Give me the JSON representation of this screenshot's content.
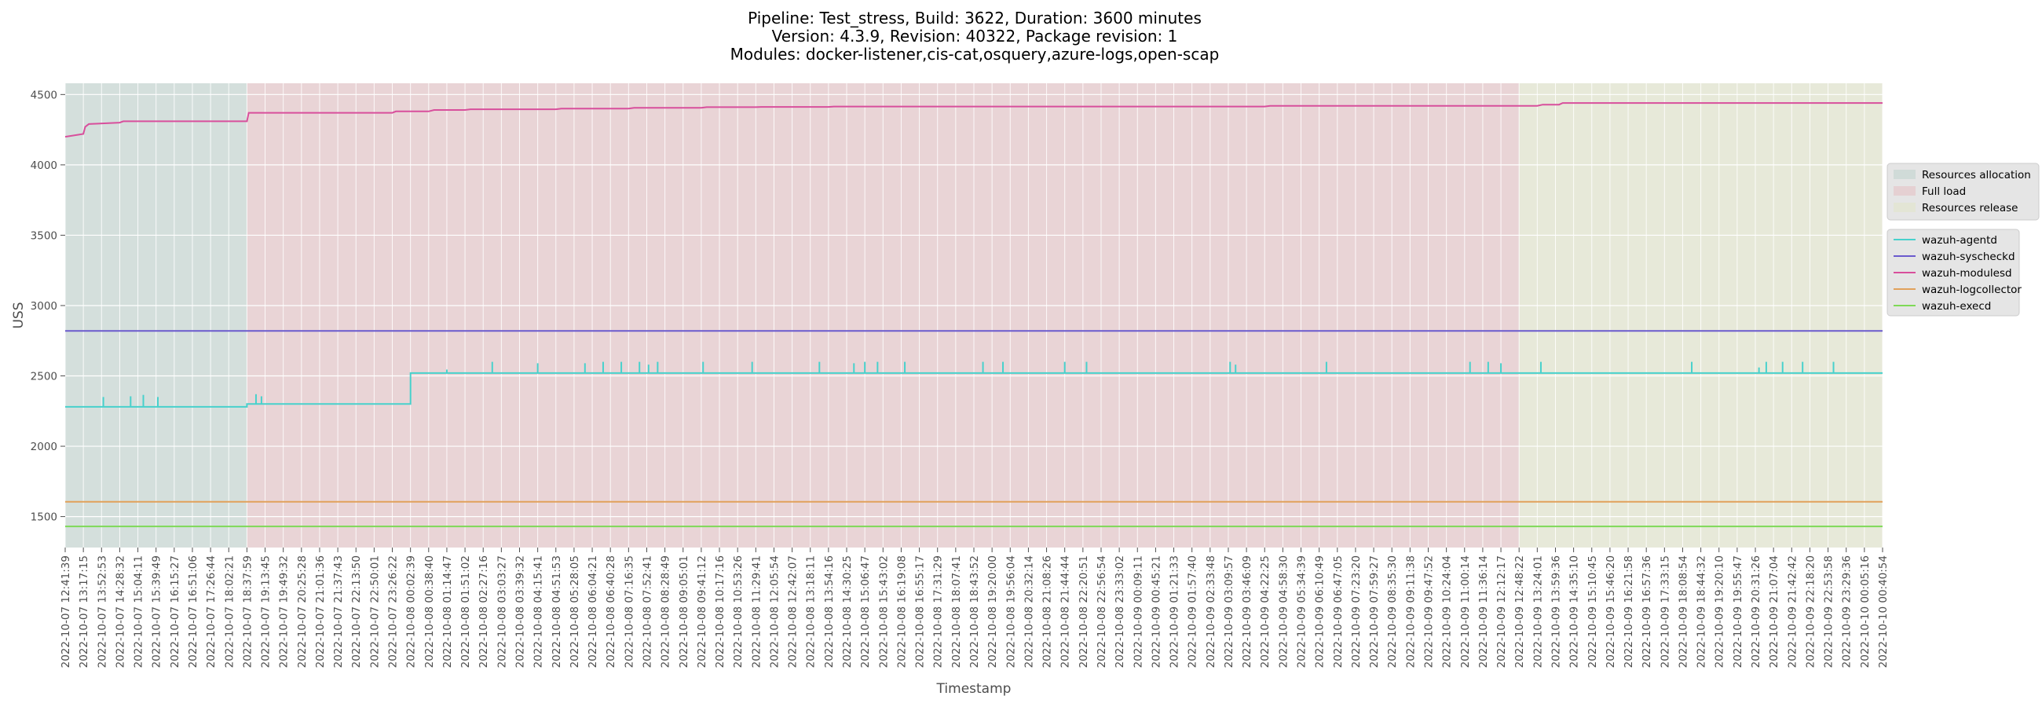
{
  "chart_data": {
    "type": "line",
    "title": [
      "Pipeline: Test_stress, Build: 3622, Duration: 3600 minutes",
      "Version: 4.3.9, Revision: 40322, Package revision: 1",
      "Modules: docker-listener,cis-cat,osquery,azure-logs,open-scap"
    ],
    "xlabel": "Timestamp",
    "ylabel": "USS",
    "ylim": [
      1280,
      4580
    ],
    "yticks": [
      1500,
      2000,
      2500,
      3000,
      3500,
      4000,
      4500
    ],
    "grid": true,
    "background": "#ebebeb",
    "xticks": [
      "2022-10-07 12:41:39",
      "2022-10-07 13:17:15",
      "2022-10-07 13:52:53",
      "2022-10-07 14:28:32",
      "2022-10-07 15:04:11",
      "2022-10-07 15:39:49",
      "2022-10-07 16:15:27",
      "2022-10-07 16:51:06",
      "2022-10-07 17:26:44",
      "2022-10-07 18:02:21",
      "2022-10-07 18:37:59",
      "2022-10-07 19:13:45",
      "2022-10-07 19:49:32",
      "2022-10-07 20:25:28",
      "2022-10-07 21:01:36",
      "2022-10-07 21:37:43",
      "2022-10-07 22:13:50",
      "2022-10-07 22:50:01",
      "2022-10-07 23:26:22",
      "2022-10-08 00:02:39",
      "2022-10-08 00:38:40",
      "2022-10-08 01:14:47",
      "2022-10-08 01:51:02",
      "2022-10-08 02:27:16",
      "2022-10-08 03:03:27",
      "2022-10-08 03:39:32",
      "2022-10-08 04:15:41",
      "2022-10-08 04:51:53",
      "2022-10-08 05:28:05",
      "2022-10-08 06:04:21",
      "2022-10-08 06:40:28",
      "2022-10-08 07:16:35",
      "2022-10-08 07:52:41",
      "2022-10-08 08:28:49",
      "2022-10-08 09:05:01",
      "2022-10-08 09:41:12",
      "2022-10-08 10:17:16",
      "2022-10-08 10:53:26",
      "2022-10-08 11:29:41",
      "2022-10-08 12:05:54",
      "2022-10-08 12:42:07",
      "2022-10-08 13:18:11",
      "2022-10-08 13:54:16",
      "2022-10-08 14:30:25",
      "2022-10-08 15:06:47",
      "2022-10-08 15:43:02",
      "2022-10-08 16:19:08",
      "2022-10-08 16:55:17",
      "2022-10-08 17:31:29",
      "2022-10-08 18:07:41",
      "2022-10-08 18:43:52",
      "2022-10-08 19:20:00",
      "2022-10-08 19:56:04",
      "2022-10-08 20:32:14",
      "2022-10-08 21:08:26",
      "2022-10-08 21:44:44",
      "2022-10-08 22:20:51",
      "2022-10-08 22:56:54",
      "2022-10-08 23:33:02",
      "2022-10-09 00:09:11",
      "2022-10-09 00:45:21",
      "2022-10-09 01:21:33",
      "2022-10-09 01:57:40",
      "2022-10-09 02:33:48",
      "2022-10-09 03:09:57",
      "2022-10-09 03:46:09",
      "2022-10-09 04:22:25",
      "2022-10-09 04:58:30",
      "2022-10-09 05:34:39",
      "2022-10-09 06:10:49",
      "2022-10-09 06:47:05",
      "2022-10-09 07:23:20",
      "2022-10-09 07:59:27",
      "2022-10-09 08:35:30",
      "2022-10-09 09:11:38",
      "2022-10-09 09:47:52",
      "2022-10-09 10:24:04",
      "2022-10-09 11:00:14",
      "2022-10-09 11:36:14",
      "2022-10-09 12:12:17",
      "2022-10-09 12:48:22",
      "2022-10-09 13:24:01",
      "2022-10-09 13:59:36",
      "2022-10-09 14:35:10",
      "2022-10-09 15:10:45",
      "2022-10-09 15:46:20",
      "2022-10-09 16:21:58",
      "2022-10-09 16:57:36",
      "2022-10-09 17:33:15",
      "2022-10-09 18:08:54",
      "2022-10-09 18:44:32",
      "2022-10-09 19:20:10",
      "2022-10-09 19:55:47",
      "2022-10-09 20:31:26",
      "2022-10-09 21:07:04",
      "2022-10-09 21:42:42",
      "2022-10-09 22:18:20",
      "2022-10-09 22:53:58",
      "2022-10-09 23:29:36",
      "2022-10-10 00:05:16",
      "2022-10-10 00:40:54"
    ],
    "phases": [
      {
        "name": "Resources allocation",
        "start": "2022-10-07 12:41:39",
        "end": "2022-10-07 18:37:59",
        "color": "#a9c9c0"
      },
      {
        "name": "Full load",
        "start": "2022-10-07 18:37:59",
        "end": "2022-10-09 12:48:22",
        "color": "#e5a9ae"
      },
      {
        "name": "Resources release",
        "start": "2022-10-09 12:48:22",
        "end": "2022-10-10 00:40:54",
        "color": "#e0e6b8"
      }
    ],
    "series": [
      {
        "name": "wazuh-agentd",
        "color": "#48d1cc",
        "segments": [
          {
            "from": 0,
            "to": 10,
            "value": 2280
          },
          {
            "from": 10,
            "to": 19,
            "value": 2300
          },
          {
            "from": 19,
            "to": 100,
            "value": 2520
          }
        ],
        "spikes": [
          {
            "at": 2.1,
            "value": 2350
          },
          {
            "at": 3.6,
            "value": 2355
          },
          {
            "at": 4.3,
            "value": 2365
          },
          {
            "at": 5.1,
            "value": 2350
          },
          {
            "at": 10.5,
            "value": 2370
          },
          {
            "at": 10.8,
            "value": 2355
          },
          {
            "at": 21.0,
            "value": 2545
          },
          {
            "at": 23.5,
            "value": 2600
          },
          {
            "at": 26.0,
            "value": 2590
          },
          {
            "at": 28.6,
            "value": 2590
          },
          {
            "at": 29.6,
            "value": 2600
          },
          {
            "at": 30.6,
            "value": 2600
          },
          {
            "at": 31.6,
            "value": 2600
          },
          {
            "at": 32.1,
            "value": 2580
          },
          {
            "at": 32.6,
            "value": 2600
          },
          {
            "at": 35.1,
            "value": 2600
          },
          {
            "at": 37.8,
            "value": 2600
          },
          {
            "at": 41.5,
            "value": 2600
          },
          {
            "at": 43.4,
            "value": 2590
          },
          {
            "at": 44.0,
            "value": 2600
          },
          {
            "at": 44.7,
            "value": 2600
          },
          {
            "at": 46.2,
            "value": 2600
          },
          {
            "at": 50.5,
            "value": 2600
          },
          {
            "at": 51.6,
            "value": 2600
          },
          {
            "at": 55.0,
            "value": 2600
          },
          {
            "at": 56.2,
            "value": 2600
          },
          {
            "at": 64.1,
            "value": 2600
          },
          {
            "at": 64.4,
            "value": 2580
          },
          {
            "at": 69.4,
            "value": 2600
          },
          {
            "at": 77.3,
            "value": 2600
          },
          {
            "at": 78.3,
            "value": 2600
          },
          {
            "at": 79.0,
            "value": 2590
          },
          {
            "at": 81.2,
            "value": 2600
          },
          {
            "at": 89.5,
            "value": 2600
          },
          {
            "at": 93.2,
            "value": 2560
          },
          {
            "at": 93.6,
            "value": 2600
          },
          {
            "at": 94.5,
            "value": 2600
          },
          {
            "at": 95.6,
            "value": 2600
          },
          {
            "at": 97.3,
            "value": 2600
          }
        ]
      },
      {
        "name": "wazuh-syscheckd",
        "color": "#6a5acd",
        "segments": [
          {
            "from": 0,
            "to": 100,
            "value": 2820
          }
        ]
      },
      {
        "name": "wazuh-modulesd",
        "color": "#d84f9c",
        "points": [
          [
            0,
            4200
          ],
          [
            1.0,
            4220
          ],
          [
            1.1,
            4270
          ],
          [
            1.3,
            4290
          ],
          [
            3.0,
            4300
          ],
          [
            3.2,
            4310
          ],
          [
            10.0,
            4310
          ],
          [
            10.1,
            4370
          ],
          [
            18.0,
            4370
          ],
          [
            18.2,
            4380
          ],
          [
            20.0,
            4380
          ],
          [
            20.3,
            4390
          ],
          [
            22.0,
            4390
          ],
          [
            22.3,
            4395
          ],
          [
            27.0,
            4395
          ],
          [
            27.3,
            4400
          ],
          [
            31.0,
            4400
          ],
          [
            31.3,
            4405
          ],
          [
            35.0,
            4405
          ],
          [
            35.3,
            4410
          ],
          [
            38.0,
            4410
          ],
          [
            38.3,
            4412
          ],
          [
            42.0,
            4412
          ],
          [
            42.3,
            4415
          ],
          [
            66.0,
            4415
          ],
          [
            66.3,
            4420
          ],
          [
            81.0,
            4420
          ],
          [
            81.3,
            4428
          ],
          [
            82.2,
            4428
          ],
          [
            82.4,
            4440
          ],
          [
            100,
            4440
          ]
        ]
      },
      {
        "name": "wazuh-logcollector",
        "color": "#e1a15b",
        "segments": [
          {
            "from": 0,
            "to": 100,
            "value": 1605
          }
        ]
      },
      {
        "name": "wazuh-execd",
        "color": "#7ed957",
        "segments": [
          {
            "from": 0,
            "to": 100,
            "value": 1430
          }
        ]
      }
    ],
    "legend_phases_position": "right",
    "legend_series_position": "right"
  }
}
